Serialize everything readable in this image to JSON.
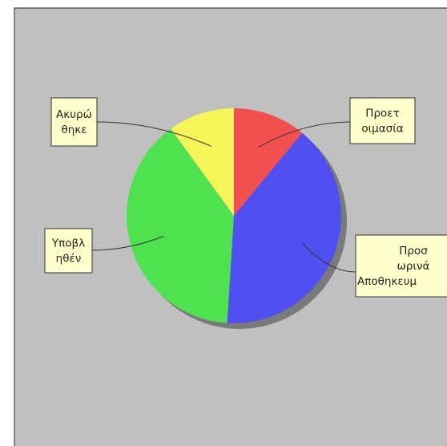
{
  "chart_data": {
    "type": "pie",
    "title": "",
    "start_angle_deg": 0,
    "direction": "clockwise",
    "background_color": "#c0c0c0",
    "label_box_color": "#ffffcc",
    "slices": [
      {
        "label_lines": [
          "Προετ",
          "οιμασία"
        ],
        "value": 11,
        "color": "#f25050"
      },
      {
        "label_lines": [
          "Προσ",
          "ωρινά",
          "Αποθηκευμ"
        ],
        "value": 40,
        "color": "#5050f2"
      },
      {
        "label_lines": [
          "Υποβλ",
          "ηθέν"
        ],
        "value": 39,
        "color": "#50e150"
      },
      {
        "label_lines": [
          "Ακυρώ",
          "θηκε"
        ],
        "value": 10,
        "color": "#f5f55a"
      }
    ]
  }
}
